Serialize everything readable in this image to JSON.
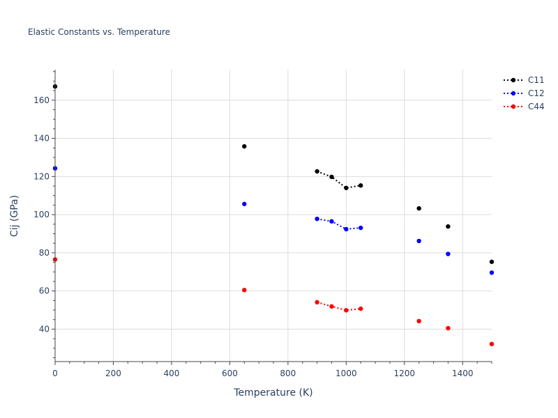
{
  "chart_data": {
    "type": "line",
    "title": "Elastic Constants vs. Temperature",
    "xlabel": "Temperature (K)",
    "ylabel": "Cij (GPa)",
    "xlim": [
      0,
      1500
    ],
    "ylim": [
      23,
      176
    ],
    "x_ticks": [
      0,
      200,
      400,
      600,
      800,
      1000,
      1200,
      1400
    ],
    "y_ticks": [
      40,
      60,
      80,
      100,
      120,
      140,
      160
    ],
    "x_tick_labels": [
      "0",
      "200",
      "400",
      "600",
      "800",
      "1000",
      "1200",
      "1400"
    ],
    "y_tick_labels": [
      "40",
      "60",
      "80",
      "100",
      "120",
      "140",
      "160"
    ],
    "grid": true,
    "legend_position": "top-right",
    "line_style": "dotted",
    "series": [
      {
        "name": "C11",
        "color": "#000000",
        "points": [
          {
            "x": 0,
            "y": 167.2
          },
          {
            "x": 650,
            "y": 135.8
          },
          {
            "x": 900,
            "y": 122.7
          },
          {
            "x": 950,
            "y": 119.8
          },
          {
            "x": 1000,
            "y": 114.0
          },
          {
            "x": 1050,
            "y": 115.3
          },
          {
            "x": 1250,
            "y": 103.3
          },
          {
            "x": 1350,
            "y": 93.8
          },
          {
            "x": 1500,
            "y": 75.3
          }
        ],
        "segments": [
          [
            900,
            950,
            1000,
            1050
          ]
        ]
      },
      {
        "name": "C12",
        "color": "#0000ff",
        "points": [
          {
            "x": 0,
            "y": 124.3
          },
          {
            "x": 650,
            "y": 105.6
          },
          {
            "x": 900,
            "y": 97.8
          },
          {
            "x": 950,
            "y": 96.5
          },
          {
            "x": 1000,
            "y": 92.4
          },
          {
            "x": 1050,
            "y": 93.1
          },
          {
            "x": 1250,
            "y": 86.2
          },
          {
            "x": 1350,
            "y": 79.4
          },
          {
            "x": 1500,
            "y": 69.6
          }
        ],
        "segments": [
          [
            900,
            950,
            1000,
            1050
          ]
        ]
      },
      {
        "name": "C44",
        "color": "#ff0000",
        "points": [
          {
            "x": 0,
            "y": 76.5
          },
          {
            "x": 650,
            "y": 60.5
          },
          {
            "x": 900,
            "y": 54.1
          },
          {
            "x": 950,
            "y": 51.9
          },
          {
            "x": 1000,
            "y": 49.9
          },
          {
            "x": 1050,
            "y": 50.7
          },
          {
            "x": 1250,
            "y": 44.2
          },
          {
            "x": 1350,
            "y": 40.5
          },
          {
            "x": 1500,
            "y": 32.2
          }
        ],
        "segments": [
          [
            900,
            950,
            1000,
            1050
          ]
        ]
      }
    ]
  }
}
